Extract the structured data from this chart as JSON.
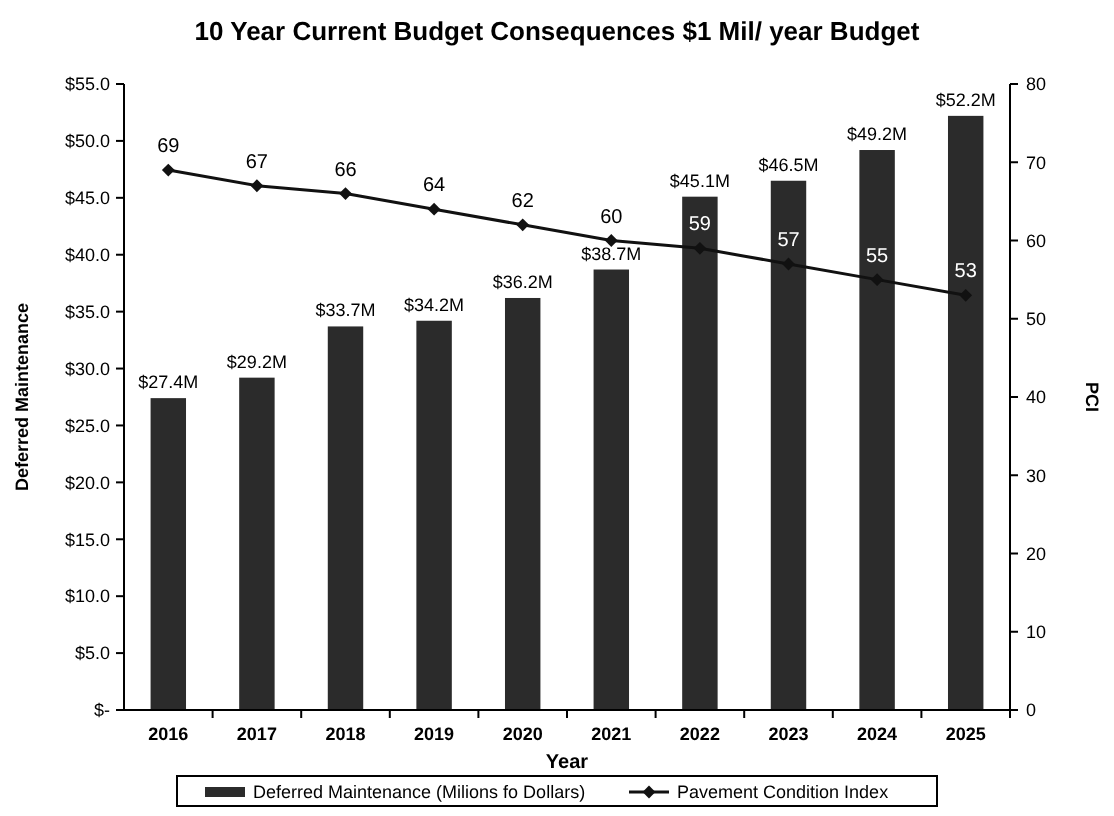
{
  "chart_data": {
    "type": "bar",
    "title": "10 Year Current Budget Consequences $1 Mil/ year Budget",
    "xlabel": "Year",
    "ylabel": "Deferred Maintenance",
    "y2label": "PCI",
    "categories": [
      "2016",
      "2017",
      "2018",
      "2019",
      "2020",
      "2021",
      "2022",
      "2023",
      "2024",
      "2025"
    ],
    "series": [
      {
        "name": "Deferred Maintenance (Milions fo Dollars)",
        "color": "#2b2b2b",
        "values": [
          27.4,
          29.2,
          33.7,
          34.2,
          36.2,
          38.7,
          45.1,
          46.5,
          49.2,
          52.2
        ],
        "value_labels": [
          "$27.4M",
          "$29.2M",
          "$33.7M",
          "$34.2M",
          "$36.2M",
          "$38.7M",
          "$45.1M",
          "$46.5M",
          "$49.2M",
          "$52.2M"
        ]
      },
      {
        "name": "Pavement Condition Index",
        "type": "line",
        "axis": "y2",
        "color": "#111111",
        "marker": "diamond",
        "values": [
          69,
          67,
          66,
          64,
          62,
          60,
          59,
          57,
          55,
          53
        ],
        "value_labels": [
          "69",
          "67",
          "66",
          "64",
          "62",
          "60",
          "59",
          "57",
          "55",
          "53"
        ]
      }
    ],
    "ylim": [
      0,
      55
    ],
    "yticks": [
      {
        "value": 0,
        "label": "$-"
      },
      {
        "value": 5,
        "label": "$5.0"
      },
      {
        "value": 10,
        "label": "$10.0"
      },
      {
        "value": 15,
        "label": "$15.0"
      },
      {
        "value": 20,
        "label": "$20.0"
      },
      {
        "value": 25,
        "label": "$25.0"
      },
      {
        "value": 30,
        "label": "$30.0"
      },
      {
        "value": 35,
        "label": "$35.0"
      },
      {
        "value": 40,
        "label": "$40.0"
      },
      {
        "value": 45,
        "label": "$45.0"
      },
      {
        "value": 50,
        "label": "$50.0"
      },
      {
        "value": 55,
        "label": "$55.0"
      }
    ],
    "y2lim": [
      0,
      80
    ],
    "y2ticks": [
      0,
      10,
      20,
      30,
      40,
      50,
      60,
      70,
      80
    ],
    "legend": "bottom",
    "grid": false
  }
}
